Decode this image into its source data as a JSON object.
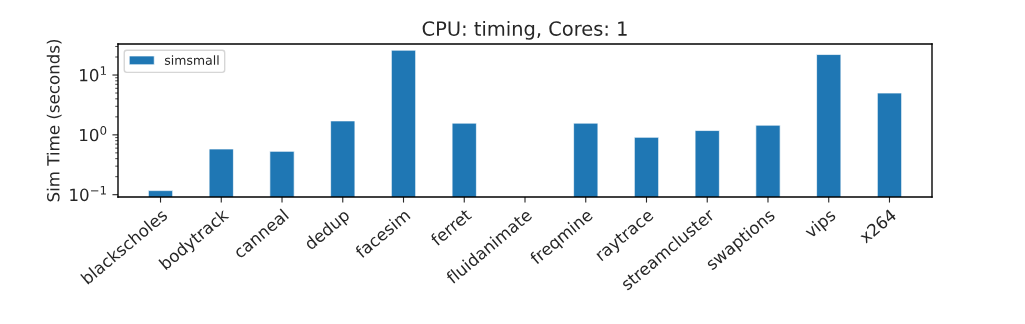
{
  "chart_data": {
    "type": "bar",
    "title": "CPU: timing, Cores: 1",
    "ylabel": "Sim Time (seconds)",
    "categories": [
      "blackscholes",
      "bodytrack",
      "canneal",
      "dedup",
      "facesim",
      "ferret",
      "fluidanimate",
      "freqmine",
      "raytrace",
      "streamcluster",
      "swaptions",
      "vips",
      "x264"
    ],
    "series": [
      {
        "name": "simsmall",
        "color": "#1f77b4",
        "values": [
          0.117,
          0.58,
          0.53,
          1.71,
          26,
          1.57,
          null,
          1.57,
          0.91,
          1.18,
          1.45,
          22,
          5.0
        ]
      }
    ],
    "log": "y",
    "ylim": [
      0.0915,
      33
    ],
    "yticks": [
      {
        "value": 0.1,
        "label": "10$^{−1}$"
      },
      {
        "value": 1,
        "label": "10$^{0}$"
      },
      {
        "value": 10,
        "label": "10$^{1}$"
      }
    ],
    "legend": "top left",
    "grid": false
  }
}
